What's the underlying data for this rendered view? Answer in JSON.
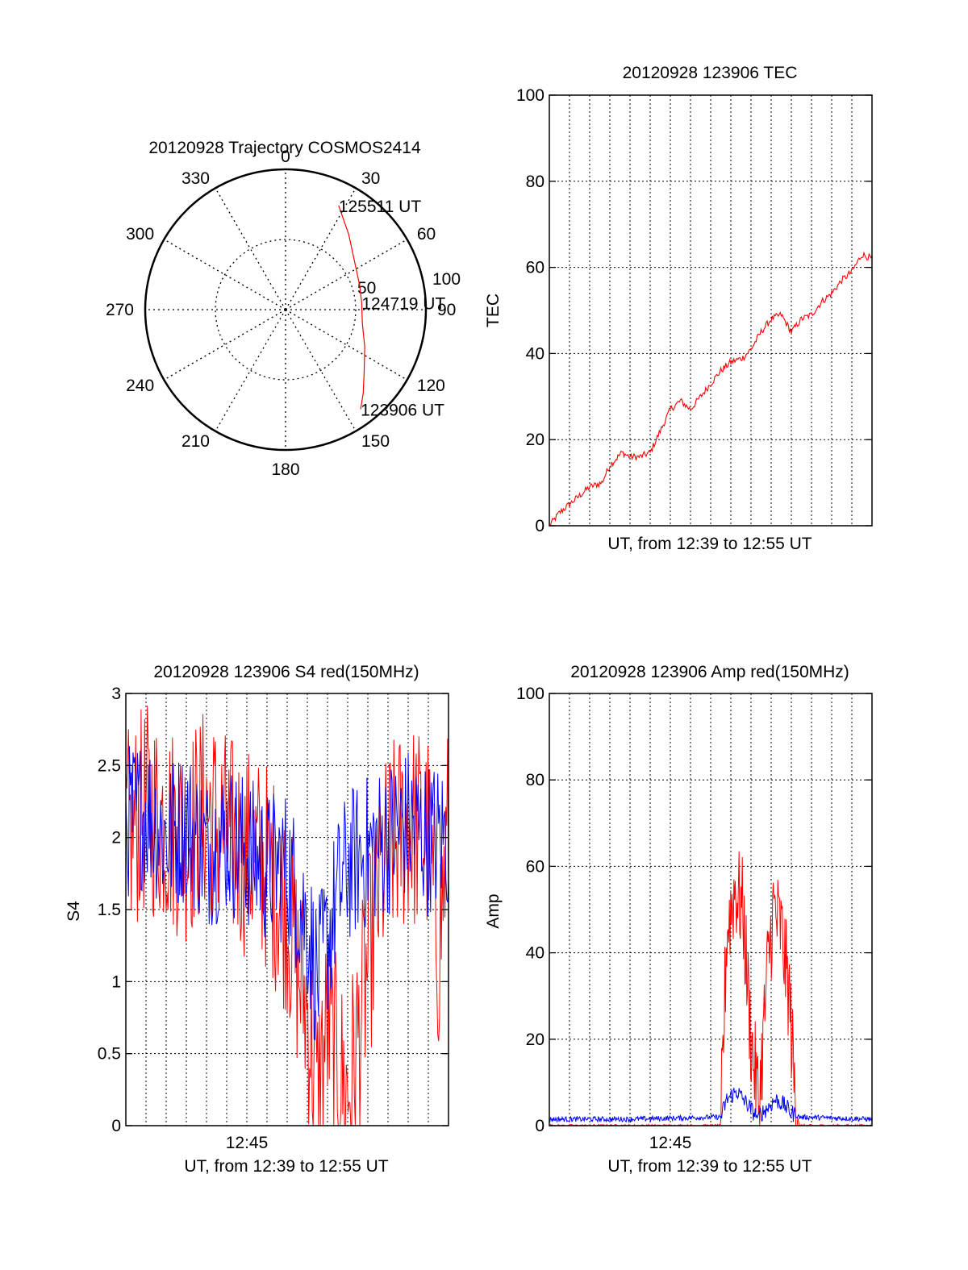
{
  "chart_data": [
    {
      "type": "polar",
      "title": "20120928 Trajectory COSMOS2414",
      "angle_ticks": [
        "0",
        "30",
        "60",
        "90",
        "120",
        "150",
        "180",
        "210",
        "240",
        "270",
        "300",
        "330"
      ],
      "radial_ticks": [
        "50",
        "100"
      ],
      "series": [
        {
          "color": "#ff0000",
          "points": [
            {
              "az": 27,
              "el": 15
            },
            {
              "az": 40,
              "el": 27
            },
            {
              "az": 55,
              "el": 36
            },
            {
              "az": 72,
              "el": 40
            },
            {
              "az": 85,
              "el": 41
            },
            {
              "az": 100,
              "el": 40
            },
            {
              "az": 115,
              "el": 34
            },
            {
              "az": 128,
              "el": 26
            },
            {
              "az": 137,
              "el": 17
            },
            {
              "az": 143,
              "el": 10
            }
          ]
        }
      ],
      "annotations": [
        {
          "text": "125511 UT",
          "az": 27,
          "el": 15
        },
        {
          "text": "124719 UT",
          "az": 85,
          "el": 41
        },
        {
          "text": "123906 UT",
          "az": 143,
          "el": 10
        }
      ]
    },
    {
      "type": "line",
      "title": "20120928 123906 TEC",
      "xlabel": "UT, from 12:39 to 12:55 UT",
      "ylabel": "TEC",
      "ylim": [
        0,
        100
      ],
      "yticks": [
        "0",
        "20",
        "40",
        "60",
        "80",
        "100"
      ],
      "xticks": [],
      "grid": true,
      "series": [
        {
          "color": "#ff0000",
          "x": [
            0,
            0.5,
            1,
            1.5,
            2,
            2.6,
            3,
            3.6,
            4,
            4.5,
            5,
            5.4,
            6,
            6.5,
            7,
            7.5,
            8,
            8.5,
            9,
            9.6,
            10,
            10.5,
            11,
            11.5,
            12,
            12.5,
            13,
            13.5,
            14,
            14.5,
            15,
            15.5,
            16
          ],
          "y": [
            0,
            3,
            5,
            7,
            9,
            10,
            14,
            17,
            16,
            16,
            17,
            21,
            27,
            29,
            27,
            30,
            33,
            36,
            38,
            39,
            41,
            45,
            48,
            49,
            45,
            48,
            49,
            52,
            54,
            57,
            59,
            63,
            62
          ]
        }
      ]
    },
    {
      "type": "line",
      "title": "20120928 123906 S4 red(150MHz)",
      "xlabel": "UT, from 12:39 to 12:55 UT",
      "ylabel": "S4",
      "ylim": [
        0,
        3
      ],
      "yticks": [
        "0",
        "0.5",
        "1",
        "1.5",
        "2",
        "2.5",
        "3"
      ],
      "xticks": [
        {
          "label": "12:45",
          "x": 6
        }
      ],
      "grid": true,
      "series": [
        {
          "color": "#ff0000",
          "x": [
            0,
            1,
            2,
            3,
            4,
            5,
            6,
            7,
            8,
            8.5,
            9,
            9.5,
            10,
            10.5,
            11,
            11.5,
            12,
            12.5,
            13,
            14,
            15,
            15.5,
            16
          ],
          "y": [
            2.0,
            2.2,
            2.1,
            2.0,
            2.2,
            2.0,
            1.9,
            1.8,
            1.5,
            1.1,
            0.8,
            0.2,
            0.7,
            0.4,
            0.2,
            0.6,
            1.1,
            1.6,
            1.9,
            2.1,
            2.0,
            1.2,
            2.1
          ]
        },
        {
          "color": "#0000ff",
          "x": [
            0,
            1,
            2,
            3,
            4,
            5,
            6,
            7,
            8,
            9,
            9.5,
            10,
            10.5,
            11,
            12,
            13,
            14,
            15,
            16
          ],
          "y": [
            2.1,
            2.2,
            2.0,
            2.1,
            1.9,
            2.0,
            1.9,
            1.8,
            1.8,
            1.4,
            1.0,
            1.3,
            1.6,
            1.8,
            1.9,
            2.0,
            2.1,
            2.0,
            2.0
          ]
        }
      ]
    },
    {
      "type": "line",
      "title": "20120928 123906 Amp red(150MHz)",
      "xlabel": "UT, from 12:39 to 12:55 UT",
      "ylabel": "Amp",
      "ylim": [
        0,
        100
      ],
      "yticks": [
        "0",
        "20",
        "40",
        "60",
        "80",
        "100"
      ],
      "xticks": [
        {
          "label": "12:45",
          "x": 6
        }
      ],
      "grid": true,
      "series": [
        {
          "color": "#ff0000",
          "x": [
            0,
            8.5,
            8.8,
            9.2,
            9.6,
            10.0,
            10.4,
            10.8,
            11.1,
            11.5,
            11.9,
            12.2,
            12.4,
            16
          ],
          "y": [
            0,
            0,
            45,
            55,
            50,
            20,
            5,
            35,
            50,
            45,
            30,
            5,
            0,
            0
          ]
        },
        {
          "color": "#0000ff",
          "x": [
            0,
            4,
            8.5,
            8.8,
            9.3,
            9.8,
            10.3,
            10.8,
            11.2,
            11.6,
            12.0,
            12.4,
            16
          ],
          "y": [
            1.5,
            1.5,
            2,
            6,
            8,
            5,
            2,
            4,
            6,
            5,
            3,
            2,
            1.5
          ]
        }
      ]
    }
  ]
}
